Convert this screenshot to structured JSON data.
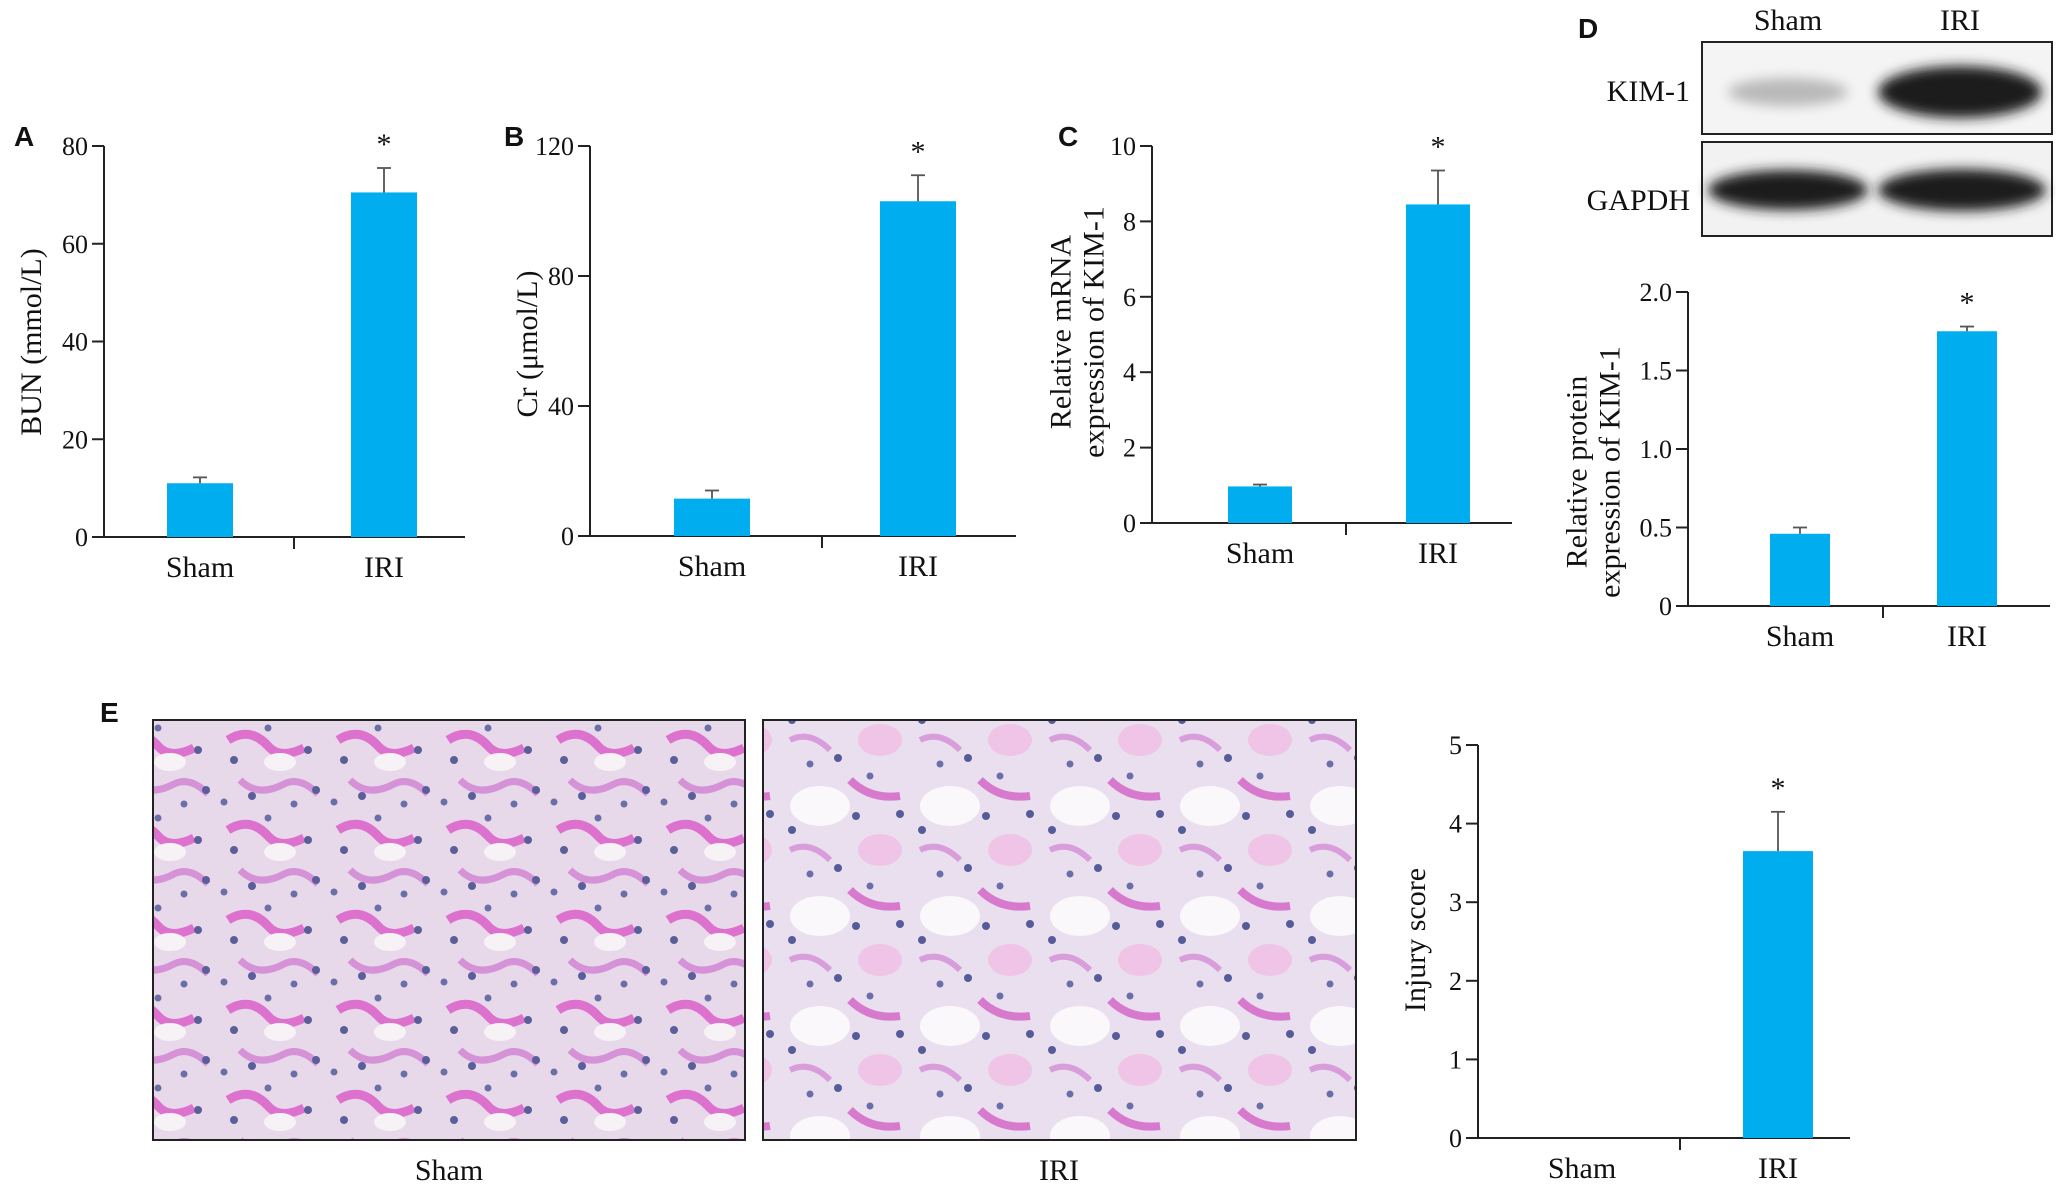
{
  "panels": {
    "A": "A",
    "B": "B",
    "C": "C",
    "D": "D",
    "E": "E"
  },
  "western_blot": {
    "lane_labels": [
      "Sham",
      "IRI"
    ],
    "rows": [
      "KIM-1",
      "GAPDH"
    ]
  },
  "histology": {
    "captions": [
      "Sham",
      "IRI"
    ]
  },
  "colors": {
    "bar": "#00aeef"
  },
  "chart_data": [
    {
      "panel": "A",
      "type": "bar",
      "categories": [
        "Sham",
        "IRI"
      ],
      "values": [
        11,
        70.5
      ],
      "errors": [
        1.2,
        5
      ],
      "significance": [
        "",
        "*"
      ],
      "ylabel": "BUN (mmol/L)",
      "ylim": [
        0,
        80
      ],
      "yticks": [
        0,
        20,
        40,
        60,
        80
      ]
    },
    {
      "panel": "B",
      "type": "bar",
      "categories": [
        "Sham",
        "IRI"
      ],
      "values": [
        11.5,
        103
      ],
      "errors": [
        2.5,
        8
      ],
      "significance": [
        "",
        "*"
      ],
      "ylabel": "Cr (μmol/L)",
      "ylim": [
        0,
        120
      ],
      "yticks": [
        0,
        40,
        80,
        120
      ]
    },
    {
      "panel": "C",
      "type": "bar",
      "categories": [
        "Sham",
        "IRI"
      ],
      "values": [
        0.97,
        8.45
      ],
      "errors": [
        0.05,
        0.9
      ],
      "significance": [
        "",
        "*"
      ],
      "ylabel": [
        "Relative mRNA",
        "expression of KIM-1"
      ],
      "ylim": [
        0,
        10
      ],
      "yticks": [
        0,
        2,
        4,
        6,
        8,
        10
      ]
    },
    {
      "panel": "D",
      "type": "bar",
      "categories": [
        "Sham",
        "IRI"
      ],
      "values": [
        0.46,
        1.75
      ],
      "errors": [
        0.04,
        0.03
      ],
      "significance": [
        "",
        "*"
      ],
      "ylabel": [
        "Relative protein",
        "expression of KIM-1"
      ],
      "ylim": [
        0,
        2.0
      ],
      "yticks": [
        0,
        0.5,
        1.0,
        1.5,
        2.0
      ],
      "ytick_labels": [
        "0",
        "0.5",
        "1.0",
        "1.5",
        "2.0"
      ]
    },
    {
      "panel": "E",
      "type": "bar",
      "categories": [
        "Sham",
        "IRI"
      ],
      "values": [
        0,
        3.65
      ],
      "errors": [
        0,
        0.5
      ],
      "significance": [
        "",
        "*"
      ],
      "ylabel": "Injury score",
      "ylim": [
        0,
        5
      ],
      "yticks": [
        0,
        1,
        2,
        3,
        4,
        5
      ]
    }
  ]
}
